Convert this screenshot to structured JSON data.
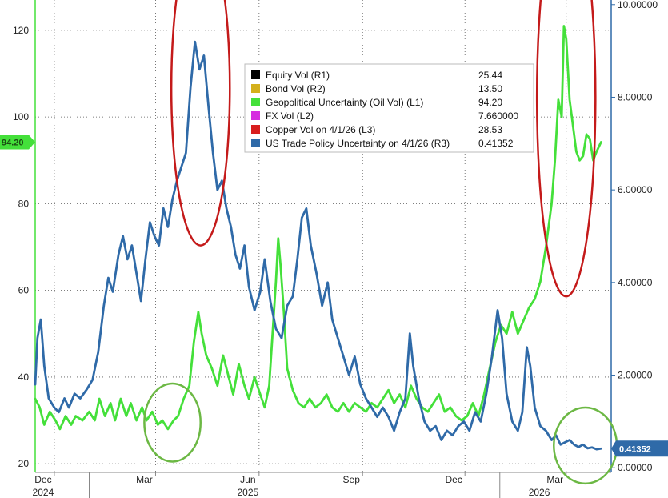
{
  "chart_data": {
    "type": "line",
    "title": "",
    "xlabel": "",
    "ylabel": "",
    "x_ticks": [
      {
        "label": "Dec",
        "date": "2024-12-01"
      },
      {
        "label": "Mar",
        "date": "2025-03-01"
      },
      {
        "label": "Jun",
        "date": "2025-06-01"
      },
      {
        "label": "Sep",
        "date": "2025-09-01"
      },
      {
        "label": "Dec",
        "date": "2025-12-01"
      },
      {
        "label": "Mar",
        "date": "2026-03-01"
      }
    ],
    "year_labels": [
      {
        "label": "2024",
        "date": "2024-12-01"
      },
      {
        "label": "2025",
        "date": "2025-06-01"
      },
      {
        "label": "2026",
        "date": "2026-02-15"
      }
    ],
    "x_range": [
      "2024-11-14",
      "2026-04-10"
    ],
    "y_left": {
      "min": 18,
      "max": 127,
      "ticks": [
        20,
        40,
        60,
        80,
        100,
        120
      ]
    },
    "y_right": {
      "min": -0.1,
      "max": 10.1,
      "ticks": [
        "0.00000",
        "2.00000",
        "4.00000",
        "6.00000",
        "8.00000",
        "10.00000"
      ]
    },
    "grid": true,
    "legend_position": "top-center",
    "legend": [
      {
        "name": "Equity Vol (R1)",
        "value": "25.44",
        "color": "#000000"
      },
      {
        "name": "Bond Vol (R2)",
        "value": "13.50",
        "color": "#d4b01c"
      },
      {
        "name": "Geopolitical Uncertainty (Oil Vol) (L1)",
        "value": "94.20",
        "color": "#44e03a"
      },
      {
        "name": "FX Vol (L2)",
        "value": "7.660000",
        "color": "#d62ce0"
      },
      {
        "name": "Copper Vol on 4/1/26 (L3)",
        "value": "28.53",
        "color": "#d81e1e"
      },
      {
        "name": "US Trade Policy Uncertainty on 4/1/26 (R3)",
        "value": "0.41352",
        "color": "#2f6aa8"
      }
    ],
    "last_value_tags": [
      {
        "text": "94.20",
        "axis": "left",
        "color": "#44e03a"
      },
      {
        "text": "0.41352",
        "axis": "right",
        "color": "#2f6aa8"
      }
    ],
    "series": [
      {
        "name": "Geopolitical Uncertainty (Oil Vol) (L1)",
        "axis": "left",
        "color": "#44e03a",
        "points": [
          [
            "2024-11-14",
            35
          ],
          [
            "2024-11-18",
            33
          ],
          [
            "2024-11-22",
            29
          ],
          [
            "2024-11-27",
            32
          ],
          [
            "2024-12-02",
            30
          ],
          [
            "2024-12-06",
            28
          ],
          [
            "2024-12-11",
            31
          ],
          [
            "2024-12-16",
            29
          ],
          [
            "2024-12-20",
            31
          ],
          [
            "2024-12-26",
            30
          ],
          [
            "2025-01-01",
            32
          ],
          [
            "2025-01-06",
            30
          ],
          [
            "2025-01-10",
            35
          ],
          [
            "2025-01-15",
            31
          ],
          [
            "2025-01-20",
            34
          ],
          [
            "2025-01-24",
            30
          ],
          [
            "2025-01-29",
            35
          ],
          [
            "2025-02-03",
            31
          ],
          [
            "2025-02-07",
            34
          ],
          [
            "2025-02-12",
            30
          ],
          [
            "2025-02-17",
            33
          ],
          [
            "2025-02-21",
            30
          ],
          [
            "2025-02-26",
            32
          ],
          [
            "2025-03-03",
            29
          ],
          [
            "2025-03-07",
            30
          ],
          [
            "2025-03-12",
            28
          ],
          [
            "2025-03-17",
            30
          ],
          [
            "2025-03-21",
            31
          ],
          [
            "2025-03-26",
            35
          ],
          [
            "2025-03-31",
            38
          ],
          [
            "2025-04-04",
            48
          ],
          [
            "2025-04-08",
            55
          ],
          [
            "2025-04-11",
            50
          ],
          [
            "2025-04-15",
            45
          ],
          [
            "2025-04-20",
            42
          ],
          [
            "2025-04-25",
            38
          ],
          [
            "2025-04-30",
            45
          ],
          [
            "2025-05-05",
            40
          ],
          [
            "2025-05-09",
            36
          ],
          [
            "2025-05-14",
            43
          ],
          [
            "2025-05-19",
            38
          ],
          [
            "2025-05-23",
            35
          ],
          [
            "2025-05-28",
            40
          ],
          [
            "2025-06-02",
            36
          ],
          [
            "2025-06-06",
            33
          ],
          [
            "2025-06-10",
            38
          ],
          [
            "2025-06-13",
            50
          ],
          [
            "2025-06-16",
            62
          ],
          [
            "2025-06-18",
            72
          ],
          [
            "2025-06-20",
            66
          ],
          [
            "2025-06-23",
            55
          ],
          [
            "2025-06-26",
            42
          ],
          [
            "2025-07-01",
            37
          ],
          [
            "2025-07-06",
            34
          ],
          [
            "2025-07-11",
            33
          ],
          [
            "2025-07-16",
            35
          ],
          [
            "2025-07-21",
            33
          ],
          [
            "2025-07-26",
            34
          ],
          [
            "2025-07-31",
            36
          ],
          [
            "2025-08-05",
            33
          ],
          [
            "2025-08-10",
            32
          ],
          [
            "2025-08-15",
            34
          ],
          [
            "2025-08-20",
            32
          ],
          [
            "2025-08-25",
            34
          ],
          [
            "2025-08-30",
            33
          ],
          [
            "2025-09-04",
            32
          ],
          [
            "2025-09-09",
            34
          ],
          [
            "2025-09-14",
            33
          ],
          [
            "2025-09-19",
            35
          ],
          [
            "2025-09-24",
            37
          ],
          [
            "2025-09-29",
            34
          ],
          [
            "2025-10-04",
            36
          ],
          [
            "2025-10-09",
            33
          ],
          [
            "2025-10-14",
            38
          ],
          [
            "2025-10-19",
            35
          ],
          [
            "2025-10-24",
            33
          ],
          [
            "2025-10-29",
            32
          ],
          [
            "2025-11-03",
            34
          ],
          [
            "2025-11-08",
            36
          ],
          [
            "2025-11-13",
            32
          ],
          [
            "2025-11-18",
            33
          ],
          [
            "2025-11-23",
            31
          ],
          [
            "2025-11-28",
            30
          ],
          [
            "2025-12-03",
            31
          ],
          [
            "2025-12-08",
            34
          ],
          [
            "2025-12-13",
            31
          ],
          [
            "2025-12-18",
            36
          ],
          [
            "2025-12-23",
            42
          ],
          [
            "2025-12-28",
            48
          ],
          [
            "2026-01-02",
            52
          ],
          [
            "2026-01-07",
            50
          ],
          [
            "2026-01-12",
            55
          ],
          [
            "2026-01-17",
            50
          ],
          [
            "2026-01-22",
            53
          ],
          [
            "2026-01-27",
            56
          ],
          [
            "2026-02-01",
            58
          ],
          [
            "2026-02-06",
            62
          ],
          [
            "2026-02-11",
            70
          ],
          [
            "2026-02-16",
            80
          ],
          [
            "2026-02-19",
            90
          ],
          [
            "2026-02-22",
            104
          ],
          [
            "2026-02-25",
            100
          ],
          [
            "2026-02-27",
            121
          ],
          [
            "2026-03-01",
            118
          ],
          [
            "2026-03-04",
            104
          ],
          [
            "2026-03-07",
            98
          ],
          [
            "2026-03-10",
            92
          ],
          [
            "2026-03-13",
            90
          ],
          [
            "2026-03-16",
            91
          ],
          [
            "2026-03-19",
            96
          ],
          [
            "2026-03-22",
            95
          ],
          [
            "2026-03-25",
            90
          ],
          [
            "2026-03-28",
            92
          ],
          [
            "2026-04-01",
            94.2
          ]
        ]
      },
      {
        "name": "US Trade Policy Uncertainty on 4/1/26 (R3)",
        "axis": "right",
        "color": "#2f6aa8",
        "points": [
          [
            "2024-11-14",
            1.8
          ],
          [
            "2024-11-16",
            2.8
          ],
          [
            "2024-11-19",
            3.2
          ],
          [
            "2024-11-22",
            2.2
          ],
          [
            "2024-11-26",
            1.5
          ],
          [
            "2024-12-01",
            1.3
          ],
          [
            "2024-12-05",
            1.2
          ],
          [
            "2024-12-10",
            1.5
          ],
          [
            "2024-12-14",
            1.3
          ],
          [
            "2024-12-19",
            1.6
          ],
          [
            "2024-12-24",
            1.5
          ],
          [
            "2024-12-30",
            1.7
          ],
          [
            "2025-01-04",
            1.9
          ],
          [
            "2025-01-09",
            2.5
          ],
          [
            "2025-01-14",
            3.5
          ],
          [
            "2025-01-18",
            4.1
          ],
          [
            "2025-01-22",
            3.8
          ],
          [
            "2025-01-27",
            4.6
          ],
          [
            "2025-01-31",
            5.0
          ],
          [
            "2025-02-04",
            4.5
          ],
          [
            "2025-02-08",
            4.8
          ],
          [
            "2025-02-12",
            4.2
          ],
          [
            "2025-02-16",
            3.6
          ],
          [
            "2025-02-20",
            4.5
          ],
          [
            "2025-02-24",
            5.3
          ],
          [
            "2025-02-28",
            5.0
          ],
          [
            "2025-03-04",
            4.8
          ],
          [
            "2025-03-08",
            5.6
          ],
          [
            "2025-03-12",
            5.2
          ],
          [
            "2025-03-16",
            5.8
          ],
          [
            "2025-03-20",
            6.2
          ],
          [
            "2025-03-24",
            6.5
          ],
          [
            "2025-03-28",
            6.8
          ],
          [
            "2025-04-01",
            8.2
          ],
          [
            "2025-04-05",
            9.2
          ],
          [
            "2025-04-09",
            8.6
          ],
          [
            "2025-04-13",
            8.9
          ],
          [
            "2025-04-17",
            7.8
          ],
          [
            "2025-04-21",
            6.8
          ],
          [
            "2025-04-25",
            6.0
          ],
          [
            "2025-04-29",
            6.2
          ],
          [
            "2025-05-03",
            5.6
          ],
          [
            "2025-05-07",
            5.2
          ],
          [
            "2025-05-11",
            4.6
          ],
          [
            "2025-05-15",
            4.3
          ],
          [
            "2025-05-19",
            4.8
          ],
          [
            "2025-05-23",
            3.9
          ],
          [
            "2025-05-28",
            3.4
          ],
          [
            "2025-06-02",
            3.8
          ],
          [
            "2025-06-06",
            4.5
          ],
          [
            "2025-06-11",
            3.6
          ],
          [
            "2025-06-16",
            3.0
          ],
          [
            "2025-06-21",
            2.8
          ],
          [
            "2025-06-26",
            3.5
          ],
          [
            "2025-07-01",
            3.7
          ],
          [
            "2025-07-05",
            4.5
          ],
          [
            "2025-07-09",
            5.4
          ],
          [
            "2025-07-13",
            5.6
          ],
          [
            "2025-07-17",
            4.8
          ],
          [
            "2025-07-22",
            4.2
          ],
          [
            "2025-07-27",
            3.5
          ],
          [
            "2025-08-01",
            4.0
          ],
          [
            "2025-08-05",
            3.2
          ],
          [
            "2025-08-10",
            2.8
          ],
          [
            "2025-08-15",
            2.4
          ],
          [
            "2025-08-20",
            2.0
          ],
          [
            "2025-08-25",
            2.4
          ],
          [
            "2025-08-30",
            1.8
          ],
          [
            "2025-09-04",
            1.5
          ],
          [
            "2025-09-09",
            1.3
          ],
          [
            "2025-09-14",
            1.1
          ],
          [
            "2025-09-19",
            1.3
          ],
          [
            "2025-09-24",
            1.1
          ],
          [
            "2025-09-29",
            0.8
          ],
          [
            "2025-10-04",
            1.2
          ],
          [
            "2025-10-09",
            1.5
          ],
          [
            "2025-10-13",
            2.9
          ],
          [
            "2025-10-16",
            2.2
          ],
          [
            "2025-10-21",
            1.5
          ],
          [
            "2025-10-26",
            1.0
          ],
          [
            "2025-10-31",
            0.8
          ],
          [
            "2025-11-05",
            0.9
          ],
          [
            "2025-11-10",
            0.6
          ],
          [
            "2025-11-15",
            0.8
          ],
          [
            "2025-11-20",
            0.7
          ],
          [
            "2025-11-25",
            0.9
          ],
          [
            "2025-11-30",
            1.0
          ],
          [
            "2025-12-05",
            0.8
          ],
          [
            "2025-12-10",
            1.2
          ],
          [
            "2025-12-15",
            1.0
          ],
          [
            "2025-12-20",
            1.6
          ],
          [
            "2025-12-25",
            2.4
          ],
          [
            "2025-12-30",
            3.4
          ],
          [
            "2026-01-03",
            2.8
          ],
          [
            "2026-01-07",
            1.6
          ],
          [
            "2026-01-12",
            1.0
          ],
          [
            "2026-01-17",
            0.8
          ],
          [
            "2026-01-21",
            1.2
          ],
          [
            "2026-01-25",
            2.6
          ],
          [
            "2026-01-28",
            2.2
          ],
          [
            "2026-02-01",
            1.3
          ],
          [
            "2026-02-06",
            0.9
          ],
          [
            "2026-02-11",
            0.8
          ],
          [
            "2026-02-16",
            0.6
          ],
          [
            "2026-02-20",
            0.7
          ],
          [
            "2026-02-24",
            0.5
          ],
          [
            "2026-02-28",
            0.55
          ],
          [
            "2026-03-04",
            0.6
          ],
          [
            "2026-03-08",
            0.5
          ],
          [
            "2026-03-12",
            0.45
          ],
          [
            "2026-03-16",
            0.5
          ],
          [
            "2026-03-20",
            0.42
          ],
          [
            "2026-03-24",
            0.44
          ],
          [
            "2026-03-28",
            0.4
          ],
          [
            "2026-04-01",
            0.41352
          ]
        ]
      }
    ],
    "annotations": [
      {
        "shape": "ellipse",
        "color": "#c41a1a",
        "center": [
          "2025-04-10",
          8.2
        ],
        "axis": "right",
        "span_days": 26,
        "span_y": 3.4
      },
      {
        "shape": "ellipse",
        "color": "#c41a1a",
        "center": [
          "2026-03-01",
          8.0
        ],
        "axis": "right",
        "span_days": 26,
        "span_y": 4.3
      },
      {
        "shape": "ellipse",
        "color": "#6cb844",
        "center": [
          "2025-03-16",
          29.5
        ],
        "axis": "left",
        "span_days": 25,
        "span_y": 9
      },
      {
        "shape": "ellipse",
        "color": "#6cb844",
        "center": [
          "2026-03-18",
          0.48
        ],
        "axis": "right",
        "span_days": 28,
        "span_y": 0.82
      }
    ]
  }
}
